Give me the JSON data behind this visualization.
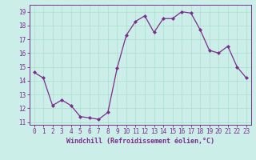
{
  "x": [
    0,
    1,
    2,
    3,
    4,
    5,
    6,
    7,
    8,
    9,
    10,
    11,
    12,
    13,
    14,
    15,
    16,
    17,
    18,
    19,
    20,
    21,
    22,
    23
  ],
  "y": [
    14.6,
    14.2,
    12.2,
    12.6,
    12.2,
    11.4,
    11.3,
    11.2,
    11.7,
    14.9,
    17.3,
    18.3,
    18.7,
    17.5,
    18.5,
    18.5,
    19.0,
    18.9,
    17.7,
    16.2,
    16.0,
    16.5,
    15.0,
    14.2
  ],
  "line_color": "#7b2d8b",
  "marker": "D",
  "markersize": 2.0,
  "linewidth": 0.9,
  "bg_color": "#cceee8",
  "grid_color": "#aaddcc",
  "axis_color": "#7b2d8b",
  "tick_color": "#7b2d8b",
  "xlabel": "Windchill (Refroidissement éolien,°C)",
  "xlabel_fontsize": 6.0,
  "ylim": [
    10.8,
    19.5
  ],
  "xlim": [
    -0.5,
    23.5
  ],
  "yticks": [
    11,
    12,
    13,
    14,
    15,
    16,
    17,
    18,
    19
  ],
  "xticks": [
    0,
    1,
    2,
    3,
    4,
    5,
    6,
    7,
    8,
    9,
    10,
    11,
    12,
    13,
    14,
    15,
    16,
    17,
    18,
    19,
    20,
    21,
    22,
    23
  ],
  "tick_fontsize": 5.5
}
